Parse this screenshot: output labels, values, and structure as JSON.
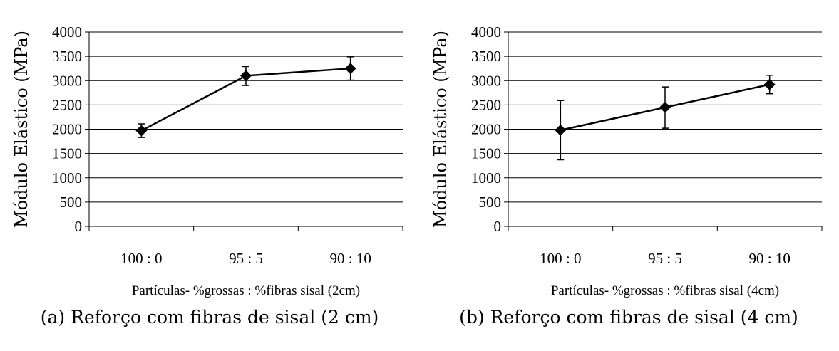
{
  "chart_data": [
    {
      "type": "line",
      "categories": [
        "100 : 0",
        "95 : 5",
        "90 : 10"
      ],
      "values": [
        1970,
        3100,
        3250
      ],
      "error_low": [
        1830,
        2900,
        3010
      ],
      "error_high": [
        2110,
        3290,
        3490
      ],
      "xlabel": "Partículas- %grossas : %fibras sisal (2cm)",
      "ylabel": "Módulo Elástico (MPa)",
      "ylim": [
        0,
        4000
      ],
      "yticks": [
        0,
        500,
        1000,
        1500,
        2000,
        2500,
        3000,
        3500,
        4000
      ],
      "grid": "horizontal",
      "marker": "diamond",
      "color": "#000000",
      "caption": "(a) Reforço com fibras de sisal (2 cm)"
    },
    {
      "type": "line",
      "categories": [
        "100 : 0",
        "95 : 5",
        "90 : 10"
      ],
      "values": [
        1980,
        2450,
        2920
      ],
      "error_low": [
        1370,
        2020,
        2730
      ],
      "error_high": [
        2590,
        2870,
        3110
      ],
      "xlabel": "Partículas- %grossas : %fibras sisal (4cm)",
      "ylabel": "Módulo Elástico (MPa)",
      "ylim": [
        0,
        4000
      ],
      "yticks": [
        0,
        500,
        1000,
        1500,
        2000,
        2500,
        3000,
        3500,
        4000
      ],
      "grid": "horizontal",
      "marker": "diamond",
      "color": "#000000",
      "caption": "(b) Reforço com fibras de sisal (4 cm)"
    }
  ]
}
